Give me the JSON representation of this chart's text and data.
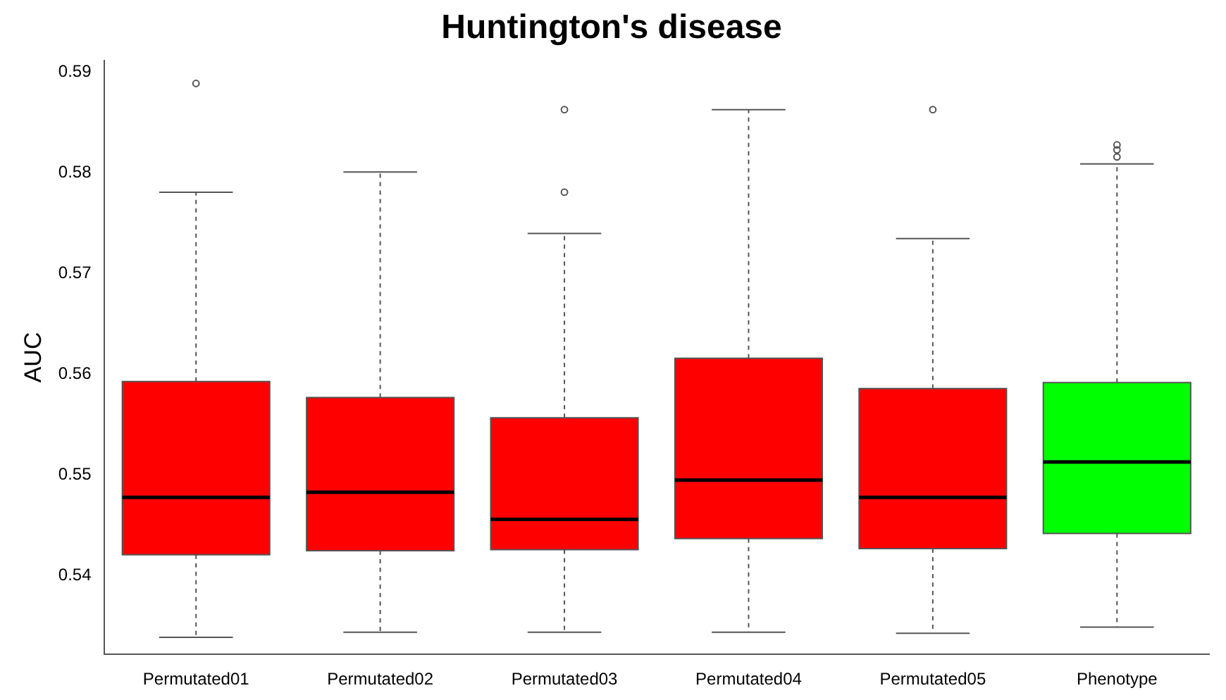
{
  "chart_data": {
    "type": "box",
    "title": "Huntington's disease",
    "ylabel": "AUC",
    "categories": [
      "Permutated01",
      "Permutated02",
      "Permutated03",
      "Permutated04",
      "Permutated05",
      "Phenotype"
    ],
    "colors": [
      "#ff0000",
      "#ff0000",
      "#ff0000",
      "#ff0000",
      "#ff0000",
      "#00ff00"
    ],
    "boxes": [
      {
        "low": 0.5339,
        "q1": 0.5421,
        "median": 0.5478,
        "q3": 0.5593,
        "high": 0.5781,
        "outliers": [
          0.5889
        ]
      },
      {
        "low": 0.5344,
        "q1": 0.5425,
        "median": 0.5483,
        "q3": 0.5577,
        "high": 0.5801
      },
      {
        "low": 0.5344,
        "q1": 0.5426,
        "median": 0.5456,
        "q3": 0.5557,
        "high": 0.574,
        "outliers": [
          0.5863,
          0.5781
        ]
      },
      {
        "low": 0.5344,
        "q1": 0.5437,
        "median": 0.5495,
        "q3": 0.5616,
        "high": 0.5863
      },
      {
        "low": 0.5343,
        "q1": 0.5427,
        "median": 0.5478,
        "q3": 0.5586,
        "high": 0.5735,
        "outliers": [
          0.5863
        ]
      },
      {
        "low": 0.5349,
        "q1": 0.5442,
        "median": 0.5513,
        "q3": 0.5592,
        "high": 0.5809,
        "outliers": [
          0.5828,
          0.5823,
          0.5816
        ]
      }
    ],
    "ylim": [
      0.5322,
      0.5912
    ],
    "yticks": [
      0.54,
      0.55,
      0.56,
      0.57,
      0.58,
      0.59
    ]
  }
}
